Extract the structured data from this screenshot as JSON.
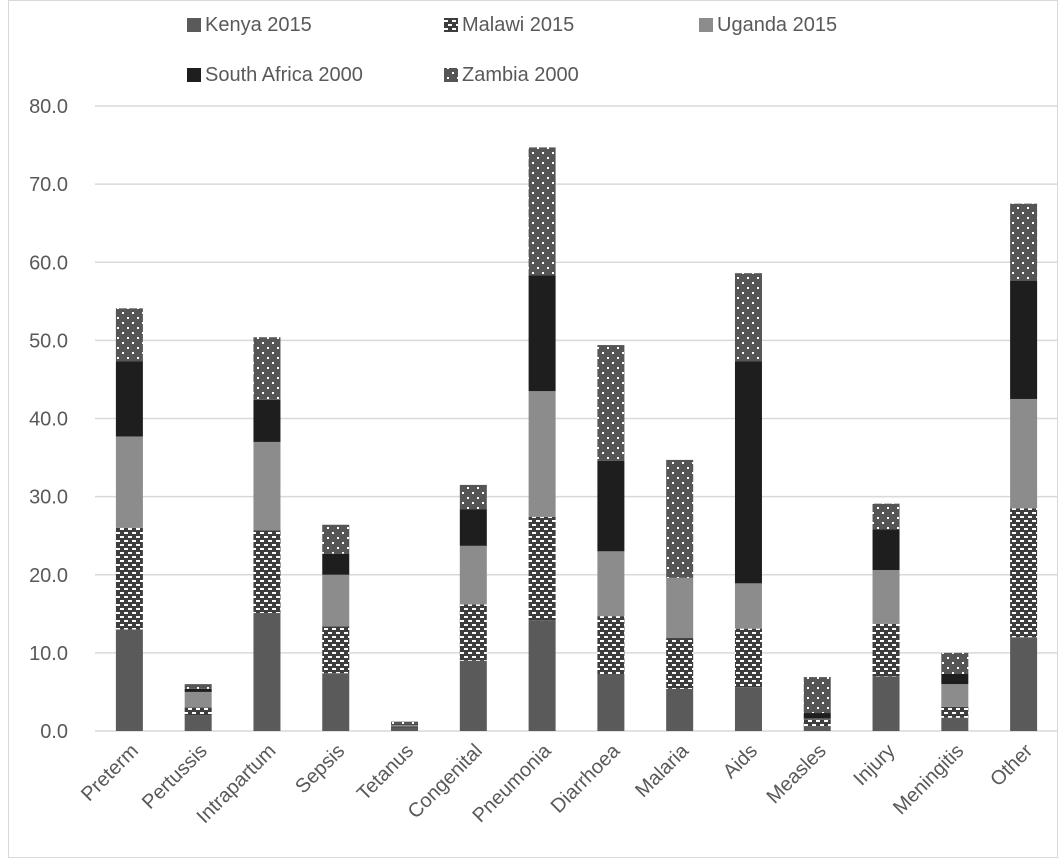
{
  "chart_data": {
    "type": "bar",
    "stacked": true,
    "title": "",
    "xlabel": "",
    "ylabel": "",
    "ylim": [
      0,
      80
    ],
    "yticks": [
      "0.0",
      "10.0",
      "20.0",
      "30.0",
      "40.0",
      "50.0",
      "60.0",
      "70.0",
      "80.0"
    ],
    "grid": true,
    "legend_position": "top",
    "categories": [
      "Preterm",
      "Pertussis",
      "Intrapartum",
      "Sepsis",
      "Tetanus",
      "Congenital",
      "Pneumonia",
      "Diarrhoea",
      "Malaria",
      "Aids",
      "Measles",
      "Injury",
      "Meningitis",
      "Other"
    ],
    "series": [
      {
        "name": "Kenya 2015",
        "color": "#5a5a5a",
        "pattern": "solid",
        "values": [
          13.0,
          2.0,
          15.1,
          7.4,
          0.4,
          9.0,
          14.2,
          7.3,
          5.4,
          5.6,
          0.6,
          7.0,
          1.7,
          12.0
        ]
      },
      {
        "name": "Malawi 2015",
        "color": "#404040",
        "pattern": "checker",
        "values": [
          13.0,
          1.0,
          10.6,
          6.0,
          0.2,
          7.2,
          13.2,
          7.4,
          6.5,
          7.5,
          0.9,
          6.7,
          1.4,
          16.5
        ]
      },
      {
        "name": "Uganda 2015",
        "color": "#8c8c8c",
        "pattern": "solid",
        "values": [
          11.7,
          2.0,
          11.3,
          6.6,
          0.2,
          7.5,
          16.1,
          8.3,
          7.7,
          5.8,
          0.1,
          6.9,
          2.9,
          14.0
        ]
      },
      {
        "name": "South Africa 2000",
        "color": "#1e1e1e",
        "pattern": "solid",
        "values": [
          9.6,
          0.4,
          5.4,
          2.7,
          0.1,
          4.7,
          14.8,
          11.6,
          0.0,
          28.4,
          0.7,
          5.2,
          1.3,
          15.1
        ]
      },
      {
        "name": "Zambia 2000",
        "color": "#555555",
        "pattern": "dots",
        "values": [
          6.8,
          0.6,
          8.0,
          3.7,
          0.3,
          3.1,
          16.4,
          14.8,
          15.1,
          11.3,
          4.6,
          3.3,
          2.7,
          9.9
        ]
      }
    ]
  }
}
